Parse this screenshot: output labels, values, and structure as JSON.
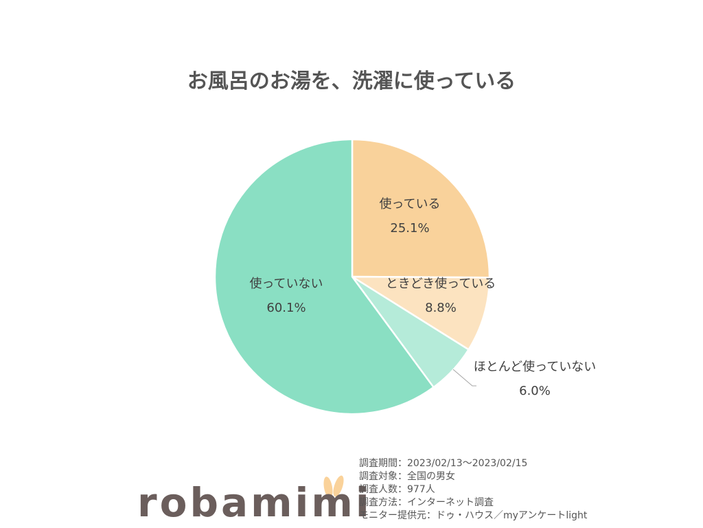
{
  "chart_data": {
    "type": "pie",
    "title": "お風呂のお湯を、洗濯に使っている",
    "start": "top",
    "direction": "clockwise",
    "slices": [
      {
        "label": "使っている",
        "value": 25.1,
        "display": "25.1%",
        "color": "#F9D29B"
      },
      {
        "label": "ときどき使っている",
        "value": 8.8,
        "display": "8.8%",
        "color": "#FCE3C0"
      },
      {
        "label": "ほとんど使っていない",
        "value": 6.0,
        "display": "6.0%",
        "color": "#B5EBD9"
      },
      {
        "label": "使っていない",
        "value": 60.1,
        "display": "60.1%",
        "color": "#8ADFC3"
      }
    ]
  },
  "logo": {
    "text": "robamimi",
    "ear_color": "#FAD29A"
  },
  "survey_notes": [
    "調査期間：2023/02/13～2023/02/15",
    "調査対象：全国の男女",
    "調査人数：977人",
    "調査方法：インターネット調査",
    "モニター提供元：ドゥ・ハウス／myアンケートlight"
  ]
}
